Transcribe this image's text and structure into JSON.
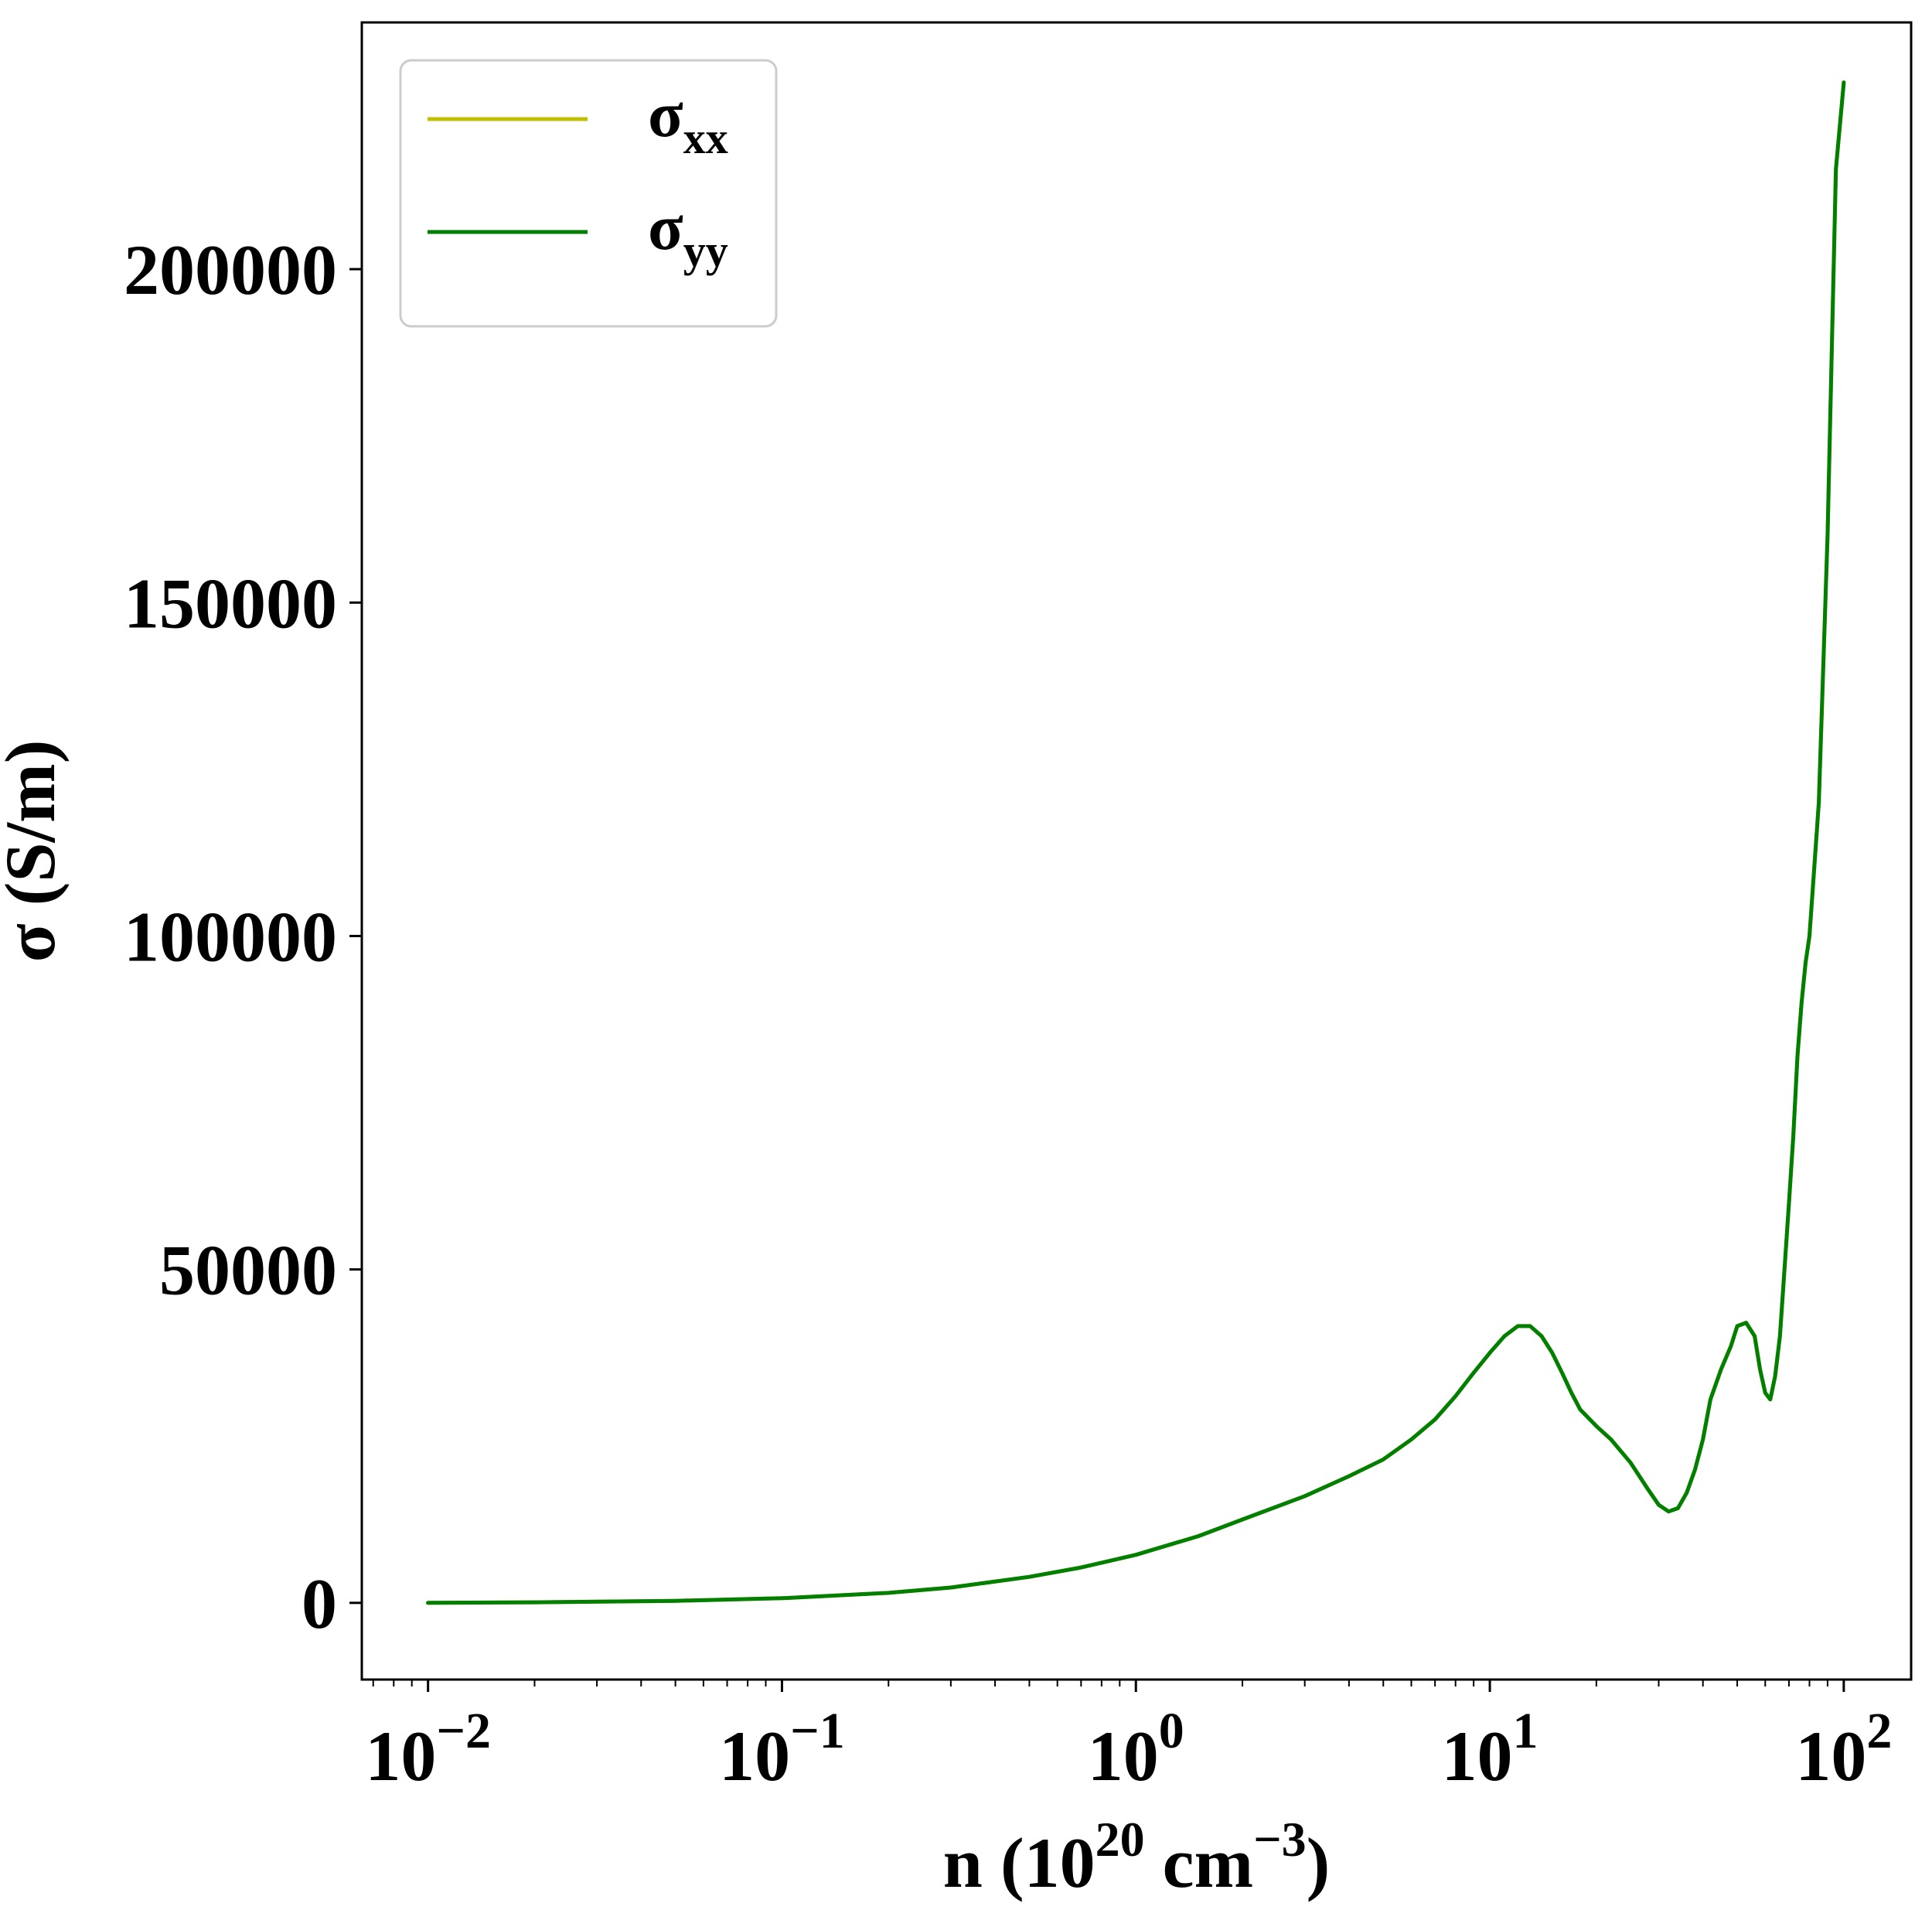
{
  "chart_data": {
    "type": "line",
    "xlabel": "n (10^20 cm^-3)",
    "xlabel_parts": {
      "prefix": "n (10",
      "sup1": "20",
      "mid": " cm",
      "sup2": "−3",
      "suffix": ")"
    },
    "ylabel": "σ (S/m)",
    "xscale": "log",
    "xlim": [
      0.0065,
      155
    ],
    "ylim": [
      -11500,
      237000
    ],
    "x_ticks": [
      {
        "value": 0.01,
        "base": "10",
        "exp": "−2"
      },
      {
        "value": 0.1,
        "base": "10",
        "exp": "−1"
      },
      {
        "value": 1,
        "base": "10",
        "exp": "0"
      },
      {
        "value": 10,
        "base": "10",
        "exp": "1"
      },
      {
        "value": 100,
        "base": "10",
        "exp": "2"
      }
    ],
    "y_ticks": [
      {
        "value": 0,
        "label": "0"
      },
      {
        "value": 50000,
        "label": "50000"
      },
      {
        "value": 100000,
        "label": "100000"
      },
      {
        "value": 150000,
        "label": "150000"
      },
      {
        "value": 200000,
        "label": "200000"
      }
    ],
    "grid": false,
    "legend": {
      "placement": "upper-left"
    },
    "series": [
      {
        "name": "σxx",
        "name_base": "σ",
        "name_sub": "xx",
        "color": "#bfbf00",
        "x": [
          0.01,
          0.02,
          0.05,
          0.1,
          0.2,
          0.3,
          0.5,
          0.7,
          1,
          1.5,
          2,
          3,
          4,
          5,
          6,
          7,
          8,
          9,
          10,
          11,
          12,
          13,
          14,
          15,
          16,
          17,
          18,
          20,
          22,
          25,
          28,
          30,
          32,
          34,
          36,
          38,
          40,
          42,
          45,
          48,
          50,
          53,
          56,
          58,
          60,
          62,
          64,
          66,
          68,
          70,
          72,
          74,
          76,
          78,
          80,
          85,
          90,
          95,
          100
        ],
        "y": [
          0,
          80,
          300,
          700,
          1500,
          2300,
          3900,
          5300,
          7200,
          10000,
          12500,
          16000,
          19000,
          21500,
          24500,
          27500,
          31000,
          34500,
          37500,
          40000,
          41500,
          41500,
          40000,
          37500,
          34500,
          31500,
          29000,
          26500,
          24500,
          21000,
          17000,
          14700,
          13700,
          14200,
          16500,
          20000,
          24500,
          30500,
          35000,
          38500,
          41500,
          42000,
          40000,
          35000,
          31500,
          30500,
          34000,
          40000,
          50000,
          60000,
          70000,
          82000,
          90000,
          96000,
          100000,
          120000,
          160000,
          215000,
          228000
        ]
      },
      {
        "name": "σyy",
        "name_base": "σ",
        "name_sub": "yy",
        "color": "#007f00",
        "x": [
          0.01,
          0.02,
          0.05,
          0.1,
          0.2,
          0.3,
          0.5,
          0.7,
          1,
          1.5,
          2,
          3,
          4,
          5,
          6,
          7,
          8,
          9,
          10,
          11,
          12,
          13,
          14,
          15,
          16,
          17,
          18,
          20,
          22,
          25,
          28,
          30,
          32,
          34,
          36,
          38,
          40,
          42,
          45,
          48,
          50,
          53,
          56,
          58,
          60,
          62,
          64,
          66,
          68,
          70,
          72,
          74,
          76,
          78,
          80,
          85,
          90,
          95,
          100
        ],
        "y": [
          0,
          80,
          300,
          700,
          1500,
          2300,
          3900,
          5300,
          7200,
          10000,
          12500,
          16000,
          19000,
          21500,
          24500,
          27500,
          31000,
          34500,
          37500,
          40000,
          41500,
          41500,
          40000,
          37500,
          34500,
          31500,
          29000,
          26500,
          24500,
          21000,
          17000,
          14700,
          13700,
          14200,
          16500,
          20000,
          24500,
          30500,
          35000,
          38500,
          41500,
          42000,
          40000,
          35000,
          31500,
          30500,
          34000,
          40000,
          50000,
          60000,
          70000,
          82000,
          90000,
          96000,
          100000,
          120000,
          160000,
          215000,
          228000
        ]
      }
    ]
  }
}
